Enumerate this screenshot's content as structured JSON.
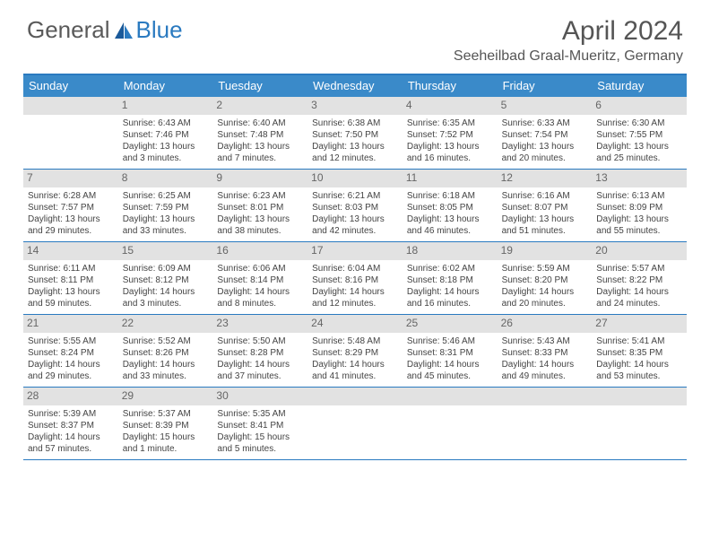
{
  "brand": {
    "text1": "General",
    "text2": "Blue",
    "logo_color": "#2a7ac0",
    "text_color": "#5a5a5a"
  },
  "title": "April 2024",
  "location": "Seeheilbad Graal-Mueritz, Germany",
  "colors": {
    "accent": "#2a7ac0",
    "header_bg": "#3a8ac9",
    "daynum_bg": "#e2e2e2"
  },
  "days_of_week": [
    "Sunday",
    "Monday",
    "Tuesday",
    "Wednesday",
    "Thursday",
    "Friday",
    "Saturday"
  ],
  "weeks": [
    [
      null,
      {
        "n": "1",
        "sunrise": "6:43 AM",
        "sunset": "7:46 PM",
        "daylight": "13 hours and 3 minutes."
      },
      {
        "n": "2",
        "sunrise": "6:40 AM",
        "sunset": "7:48 PM",
        "daylight": "13 hours and 7 minutes."
      },
      {
        "n": "3",
        "sunrise": "6:38 AM",
        "sunset": "7:50 PM",
        "daylight": "13 hours and 12 minutes."
      },
      {
        "n": "4",
        "sunrise": "6:35 AM",
        "sunset": "7:52 PM",
        "daylight": "13 hours and 16 minutes."
      },
      {
        "n": "5",
        "sunrise": "6:33 AM",
        "sunset": "7:54 PM",
        "daylight": "13 hours and 20 minutes."
      },
      {
        "n": "6",
        "sunrise": "6:30 AM",
        "sunset": "7:55 PM",
        "daylight": "13 hours and 25 minutes."
      }
    ],
    [
      {
        "n": "7",
        "sunrise": "6:28 AM",
        "sunset": "7:57 PM",
        "daylight": "13 hours and 29 minutes."
      },
      {
        "n": "8",
        "sunrise": "6:25 AM",
        "sunset": "7:59 PM",
        "daylight": "13 hours and 33 minutes."
      },
      {
        "n": "9",
        "sunrise": "6:23 AM",
        "sunset": "8:01 PM",
        "daylight": "13 hours and 38 minutes."
      },
      {
        "n": "10",
        "sunrise": "6:21 AM",
        "sunset": "8:03 PM",
        "daylight": "13 hours and 42 minutes."
      },
      {
        "n": "11",
        "sunrise": "6:18 AM",
        "sunset": "8:05 PM",
        "daylight": "13 hours and 46 minutes."
      },
      {
        "n": "12",
        "sunrise": "6:16 AM",
        "sunset": "8:07 PM",
        "daylight": "13 hours and 51 minutes."
      },
      {
        "n": "13",
        "sunrise": "6:13 AM",
        "sunset": "8:09 PM",
        "daylight": "13 hours and 55 minutes."
      }
    ],
    [
      {
        "n": "14",
        "sunrise": "6:11 AM",
        "sunset": "8:11 PM",
        "daylight": "13 hours and 59 minutes."
      },
      {
        "n": "15",
        "sunrise": "6:09 AM",
        "sunset": "8:12 PM",
        "daylight": "14 hours and 3 minutes."
      },
      {
        "n": "16",
        "sunrise": "6:06 AM",
        "sunset": "8:14 PM",
        "daylight": "14 hours and 8 minutes."
      },
      {
        "n": "17",
        "sunrise": "6:04 AM",
        "sunset": "8:16 PM",
        "daylight": "14 hours and 12 minutes."
      },
      {
        "n": "18",
        "sunrise": "6:02 AM",
        "sunset": "8:18 PM",
        "daylight": "14 hours and 16 minutes."
      },
      {
        "n": "19",
        "sunrise": "5:59 AM",
        "sunset": "8:20 PM",
        "daylight": "14 hours and 20 minutes."
      },
      {
        "n": "20",
        "sunrise": "5:57 AM",
        "sunset": "8:22 PM",
        "daylight": "14 hours and 24 minutes."
      }
    ],
    [
      {
        "n": "21",
        "sunrise": "5:55 AM",
        "sunset": "8:24 PM",
        "daylight": "14 hours and 29 minutes."
      },
      {
        "n": "22",
        "sunrise": "5:52 AM",
        "sunset": "8:26 PM",
        "daylight": "14 hours and 33 minutes."
      },
      {
        "n": "23",
        "sunrise": "5:50 AM",
        "sunset": "8:28 PM",
        "daylight": "14 hours and 37 minutes."
      },
      {
        "n": "24",
        "sunrise": "5:48 AM",
        "sunset": "8:29 PM",
        "daylight": "14 hours and 41 minutes."
      },
      {
        "n": "25",
        "sunrise": "5:46 AM",
        "sunset": "8:31 PM",
        "daylight": "14 hours and 45 minutes."
      },
      {
        "n": "26",
        "sunrise": "5:43 AM",
        "sunset": "8:33 PM",
        "daylight": "14 hours and 49 minutes."
      },
      {
        "n": "27",
        "sunrise": "5:41 AM",
        "sunset": "8:35 PM",
        "daylight": "14 hours and 53 minutes."
      }
    ],
    [
      {
        "n": "28",
        "sunrise": "5:39 AM",
        "sunset": "8:37 PM",
        "daylight": "14 hours and 57 minutes."
      },
      {
        "n": "29",
        "sunrise": "5:37 AM",
        "sunset": "8:39 PM",
        "daylight": "15 hours and 1 minute."
      },
      {
        "n": "30",
        "sunrise": "5:35 AM",
        "sunset": "8:41 PM",
        "daylight": "15 hours and 5 minutes."
      },
      null,
      null,
      null,
      null
    ]
  ],
  "labels": {
    "sunrise": "Sunrise:",
    "sunset": "Sunset:",
    "daylight": "Daylight:"
  }
}
